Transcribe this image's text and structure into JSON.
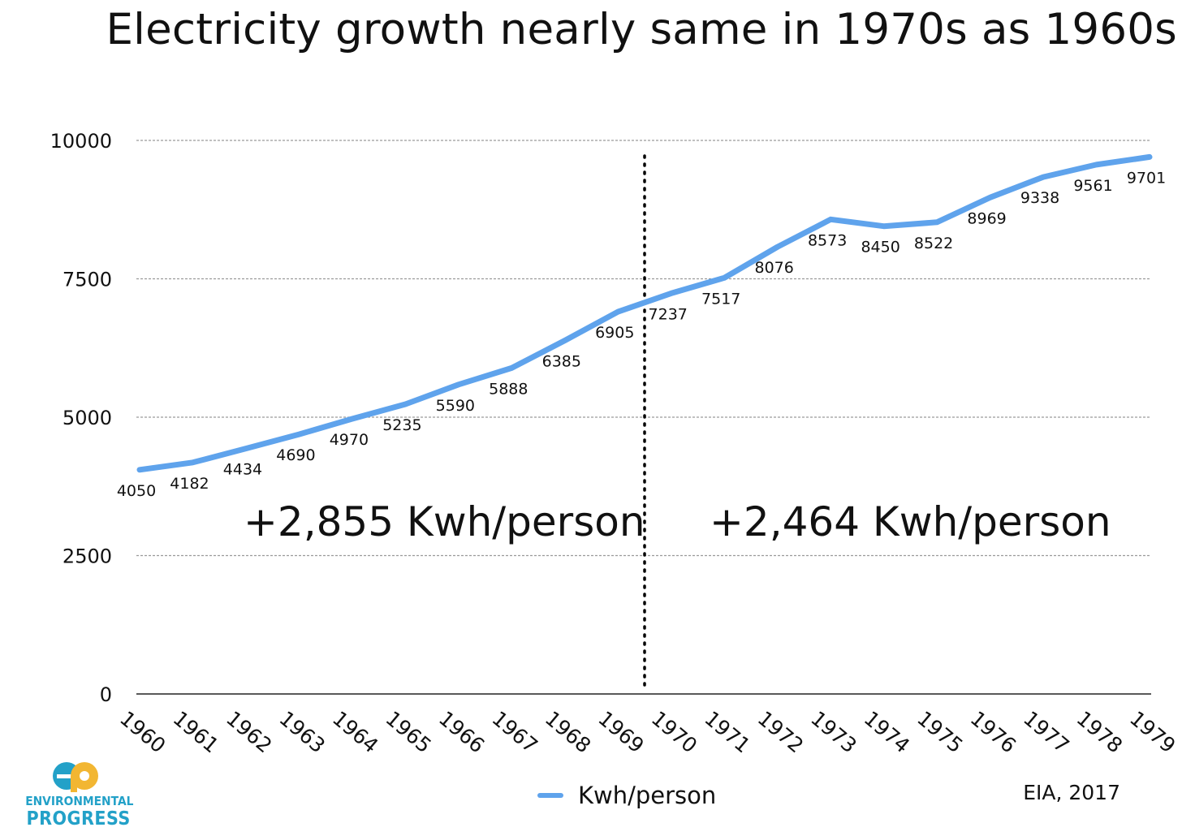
{
  "title": "Electricity growth nearly same in 1970s as 1960s",
  "annotations": {
    "left": "+2,855 Kwh/person",
    "right": "+2,464 Kwh/person"
  },
  "source": "EIA, 2017",
  "logo": {
    "line1": "ENVIRONMENTAL",
    "line2": "PROGRESS",
    "colors": {
      "teal": "#23a1c8",
      "yellow": "#f2b632"
    }
  },
  "colors": {
    "series": "#5fa3ec",
    "grid": "#9a9a9a",
    "divider": "#000000"
  },
  "chart_data": {
    "type": "line",
    "title": "Electricity growth nearly same in 1970s as 1960s",
    "categories": [
      "1960",
      "1961",
      "1962",
      "1963",
      "1964",
      "1965",
      "1966",
      "1967",
      "1968",
      "1969",
      "1970",
      "1971",
      "1972",
      "1973",
      "1974",
      "1975",
      "1976",
      "1977",
      "1978",
      "1979"
    ],
    "series": [
      {
        "name": "Kwh/person",
        "values": [
          4050,
          4182,
          4434,
          4690,
          4970,
          5235,
          5590,
          5888,
          6385,
          6905,
          7237,
          7517,
          8076,
          8573,
          8450,
          8522,
          8969,
          9338,
          9561,
          9701
        ]
      }
    ],
    "data_labels": [
      "4050",
      "4182",
      "4434",
      "4690",
      "4970",
      "5235",
      "5590",
      "5888",
      "6385",
      "6905",
      "7237",
      "7517",
      "8076",
      "8573",
      "8450",
      "8522",
      "8969",
      "9338",
      "9561",
      "9701"
    ],
    "yticks": [
      "0",
      "2500",
      "5000",
      "7500",
      "10000"
    ],
    "ylim": [
      0,
      10000
    ],
    "xlabel": "",
    "ylabel": "",
    "grid": true,
    "legend": "bottom-center",
    "divider_between": [
      "1969",
      "1970"
    ]
  }
}
